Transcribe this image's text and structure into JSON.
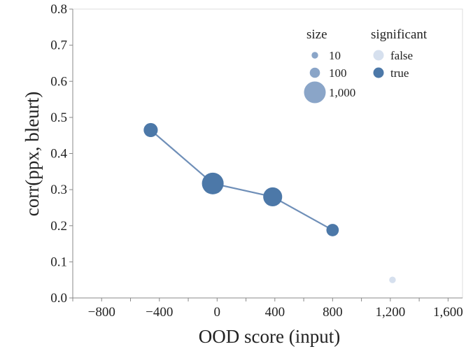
{
  "chart_data": {
    "type": "scatter",
    "title": "",
    "xlabel": "OOD score (input)",
    "ylabel": "corr(ppx, bleurt)",
    "xlim": [
      -1000,
      1700
    ],
    "ylim": [
      0,
      0.8
    ],
    "x_ticks": [
      -800,
      -400,
      0,
      400,
      800,
      1200,
      1600
    ],
    "x_tick_labels": [
      "−800",
      "−400",
      "0",
      "400",
      "800",
      "1,200",
      "1,600"
    ],
    "y_ticks": [
      0,
      0.1,
      0.2,
      0.3,
      0.4,
      0.5,
      0.6,
      0.7,
      0.8
    ],
    "y_tick_labels": [
      "0.0",
      "0.1",
      "0.2",
      "0.3",
      "0.4",
      "0.5",
      "0.6",
      "0.7",
      "0.8"
    ],
    "grid": false,
    "points": [
      {
        "x": -460,
        "y": 0.465,
        "size": 300,
        "significant": true
      },
      {
        "x": -30,
        "y": 0.317,
        "size": 1000,
        "significant": true
      },
      {
        "x": 385,
        "y": 0.28,
        "size": 700,
        "significant": true
      },
      {
        "x": 800,
        "y": 0.188,
        "size": 200,
        "significant": true
      },
      {
        "x": 1215,
        "y": 0.05,
        "size": 10,
        "significant": false
      }
    ],
    "line": {
      "connects": "significant",
      "color": "#6f8fb8"
    },
    "colors": {
      "significant_true": "#4c78a8",
      "significant_false": "#d6e0ee",
      "size_legend": "#8aa5c8",
      "axis": "#888888",
      "frame": "#dddddd"
    },
    "legend": {
      "position": "top-right",
      "size_title": "size",
      "size_entries": [
        {
          "label": "10",
          "size": 10
        },
        {
          "label": "100",
          "size": 100
        },
        {
          "label": "1,000",
          "size": 1000
        }
      ],
      "color_title": "significant",
      "color_entries": [
        {
          "label": "false",
          "significant": false
        },
        {
          "label": "true",
          "significant": true
        }
      ]
    }
  }
}
